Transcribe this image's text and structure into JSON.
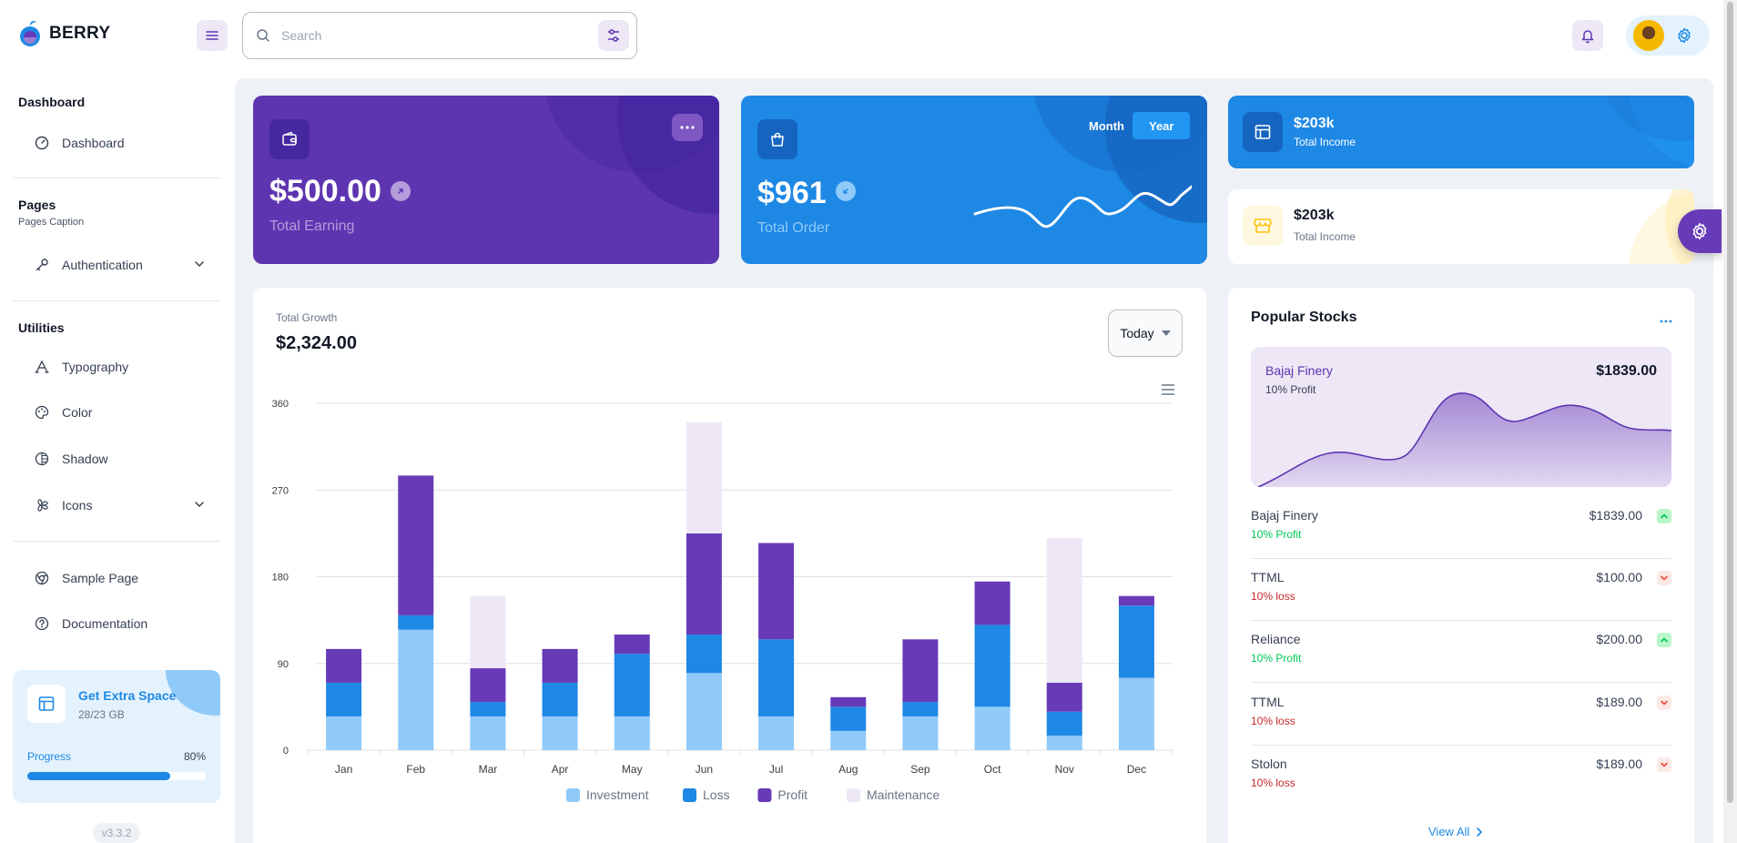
{
  "brand": {
    "name": "BERRY"
  },
  "header": {
    "search_placeholder": "Search"
  },
  "sidebar": {
    "sections": [
      {
        "title": "Dashboard"
      },
      {
        "title": "Pages",
        "caption": "Pages Caption"
      },
      {
        "title": "Utilities"
      }
    ],
    "items": {
      "dashboard": "Dashboard",
      "authentication": "Authentication",
      "typography": "Typography",
      "color": "Color",
      "shadow": "Shadow",
      "icons": "Icons",
      "sample_page": "Sample Page",
      "documentation": "Documentation"
    },
    "promo": {
      "title": "Get Extra Space",
      "subtitle": "28/23 GB",
      "progress_label": "Progress",
      "progress_text": "80%",
      "progress": 0.8
    },
    "version": "v3.3.2"
  },
  "cards": {
    "earning": {
      "value": "$500.00",
      "label": "Total Earning"
    },
    "order": {
      "value": "$961",
      "label": "Total Order",
      "toggle_month": "Month",
      "toggle_year": "Year",
      "active": "Year"
    },
    "income_dark": {
      "value": "$203k",
      "label": "Total Income"
    },
    "income_light": {
      "value": "$203k",
      "label": "Total Income"
    }
  },
  "growth": {
    "label": "Total Growth",
    "value": "$2,324.00",
    "period": "Today"
  },
  "chart_data": {
    "type": "bar",
    "stacked": true,
    "categories": [
      "Jan",
      "Feb",
      "Mar",
      "Apr",
      "May",
      "Jun",
      "Jul",
      "Aug",
      "Sep",
      "Oct",
      "Nov",
      "Dec"
    ],
    "series": [
      {
        "name": "Investment",
        "color": "#90caf9",
        "values": [
          35,
          125,
          35,
          35,
          35,
          80,
          35,
          20,
          35,
          45,
          15,
          75
        ]
      },
      {
        "name": "Loss",
        "color": "#1e88e5",
        "values": [
          35,
          15,
          15,
          35,
          65,
          40,
          80,
          25,
          15,
          85,
          25,
          75
        ]
      },
      {
        "name": "Profit",
        "color": "#673ab7",
        "values": [
          35,
          145,
          35,
          35,
          20,
          105,
          100,
          10,
          65,
          45,
          30,
          10
        ]
      },
      {
        "name": "Maintenance",
        "color": "#ede7f6",
        "values": [
          0,
          0,
          75,
          0,
          0,
          115,
          0,
          0,
          0,
          0,
          150,
          0
        ]
      }
    ],
    "yticks": [
      0,
      90,
      180,
      270,
      360
    ],
    "ylim": [
      0,
      360
    ],
    "legend": "bottom-center",
    "grid": true
  },
  "stocks": {
    "title": "Popular Stocks",
    "hero": {
      "name": "Bajaj Finery",
      "sub": "10% Profit",
      "value": "$1839.00"
    },
    "rows": [
      {
        "name": "Bajaj Finery",
        "sub": "10% Profit",
        "value": "$1839.00",
        "trend": "up"
      },
      {
        "name": "TTML",
        "sub": "10% loss",
        "value": "$100.00",
        "trend": "down"
      },
      {
        "name": "Reliance",
        "sub": "10% Profit",
        "value": "$200.00",
        "trend": "up"
      },
      {
        "name": "TTML",
        "sub": "10% loss",
        "value": "$189.00",
        "trend": "down"
      },
      {
        "name": "Stolon",
        "sub": "10% loss",
        "value": "$189.00",
        "trend": "down"
      }
    ],
    "view_all": "View All"
  },
  "colors": {
    "primary": "#1e88e5",
    "secondary": "#5e35b1",
    "success": "#00c853",
    "error": "#f44336"
  }
}
